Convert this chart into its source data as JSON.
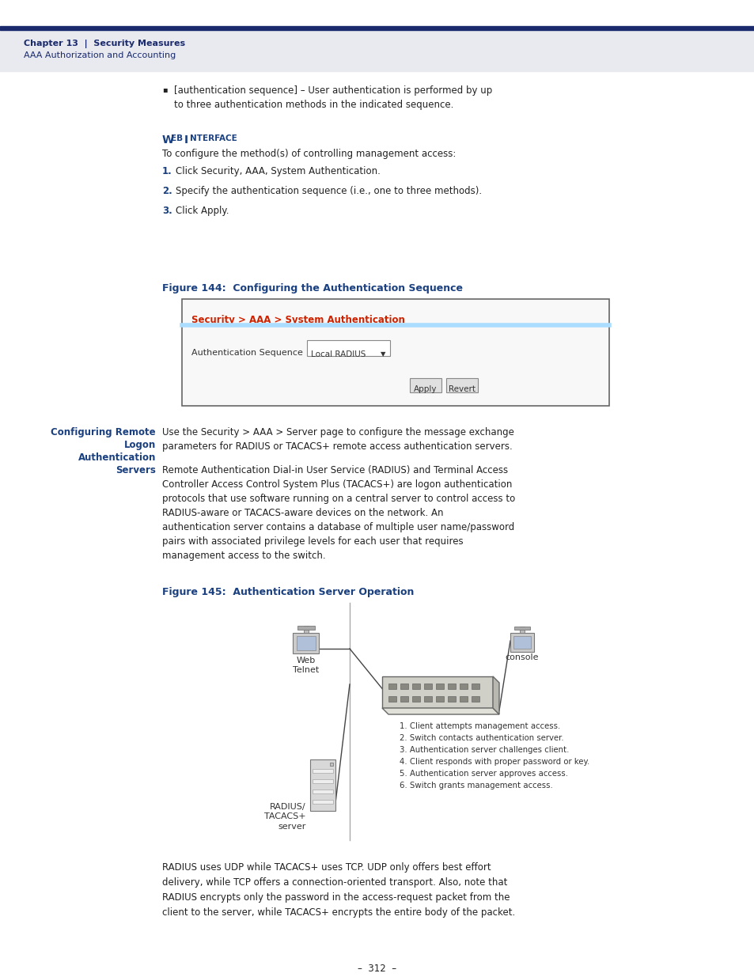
{
  "page_bg": "#ffffff",
  "header_bg": "#e8eaf0",
  "header_line_color": "#1a2a6c",
  "header_text1": "Chapter 13  |  Security Measures",
  "header_text2": "AAA Authorization and Accounting",
  "header_text_color": "#1a2a6c",
  "bullet_text": "[authentication sequence] – User authentication is performed by up\nto three authentication methods in the indicated sequence.",
  "web_interface_intro": "To configure the method(s) of controlling management access:",
  "steps": [
    "Click Security, AAA, System Authentication.",
    "Specify the authentication sequence (i.e., one to three methods).",
    "Click Apply."
  ],
  "fig144_title": "Figure 144:  Configuring the Authentication Sequence",
  "fig144_title_color": "#1a4080",
  "fig144_path_label": "Security > AAA > System Authentication",
  "fig144_path_color": "#cc2200",
  "fig144_field_label": "Authentication Sequence",
  "fig144_dropdown_text": "Local RADIUS",
  "fig144_btn1": "Apply",
  "fig144_btn2": "Revert",
  "section_left_label1": "Configuring Remote",
  "section_left_label2": "Logon",
  "section_left_label3": "Authentication",
  "section_left_label4": "Servers",
  "section_left_color": "#1a4080",
  "section_right_text1": "Use the Security > AAA > Server page to configure the message exchange\nparameters for RADIUS or TACACS+ remote access authentication servers.",
  "section_right_text2": "Remote Authentication Dial-in User Service (RADIUS) and Terminal Access\nController Access Control System Plus (TACACS+) are logon authentication\nprotocols that use software running on a central server to control access to\nRADIUS-aware or TACACS-aware devices on the network. An\nauthentication server contains a database of multiple user name/password\npairs with associated privilege levels for each user that requires\nmanagement access to the switch.",
  "fig145_title": "Figure 145:  Authentication Server Operation",
  "fig145_title_color": "#1a4080",
  "web_telnet_label": "Web\nTelnet",
  "console_label": "console",
  "radius_server_label": "RADIUS/\nTACACS+\nserver",
  "fig145_steps": [
    "1. Client attempts management access.",
    "2. Switch contacts authentication server.",
    "3. Authentication server challenges client.",
    "4. Client responds with proper password or key.",
    "5. Authentication server approves access.",
    "6. Switch grants management access."
  ],
  "bottom_text": "RADIUS uses UDP while TACACS+ uses TCP. UDP only offers best effort\ndelivery, while TCP offers a connection-oriented transport. Also, note that\nRADIUS encrypts only the password in the access-request packet from the\nclient to the server, while TACACS+ encrypts the entire body of the packet.",
  "page_number": "–  312  –",
  "body_text_color": "#222222",
  "step_number_color": "#1a4080"
}
